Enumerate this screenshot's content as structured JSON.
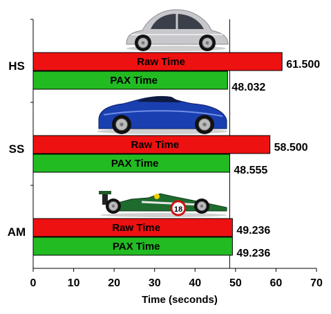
{
  "chart_data": {
    "type": "bar",
    "orientation": "horizontal",
    "xlabel": "Time (seconds)",
    "ylabel": "",
    "xlim": [
      0,
      70
    ],
    "x_ticks": [
      0,
      10,
      20,
      30,
      40,
      50,
      60,
      70
    ],
    "reference_line": 48.555,
    "grid": false,
    "categories": [
      "HS",
      "SS",
      "AM"
    ],
    "series": [
      {
        "name": "Raw Time",
        "color": "#ee1111",
        "values": [
          61.5,
          58.5,
          49.236
        ],
        "labels": [
          "61.500",
          "58.500",
          "49.236"
        ]
      },
      {
        "name": "PAX Time",
        "color": "#22bb22",
        "values": [
          48.032,
          48.555,
          49.236
        ],
        "labels": [
          "48.032",
          "48.555",
          "49.236"
        ]
      }
    ],
    "category_images": [
      "car-beetle-icon",
      "car-corvette-icon",
      "car-formula-racer-icon"
    ]
  }
}
